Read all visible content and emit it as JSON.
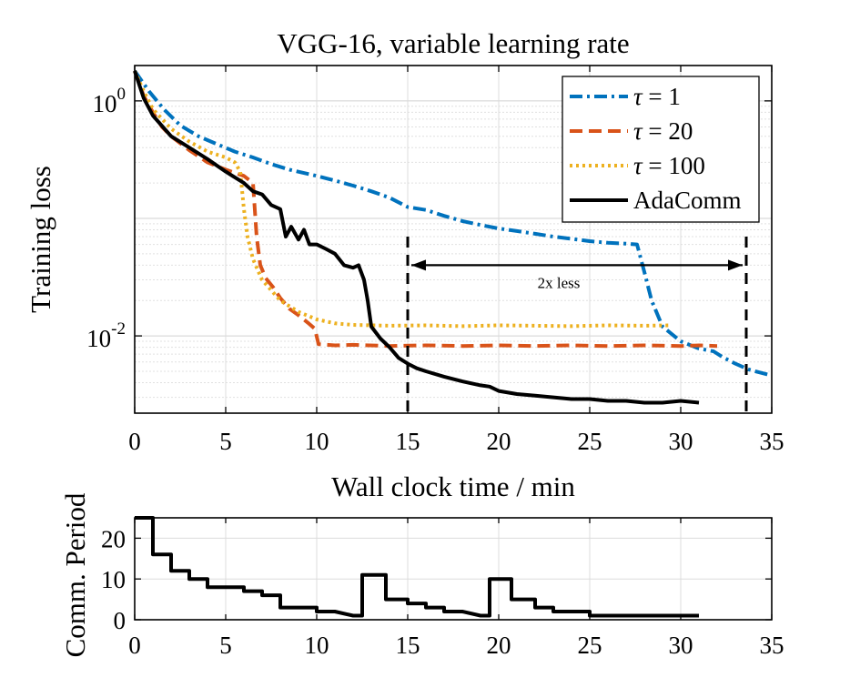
{
  "chart_data": [
    {
      "type": "line",
      "title": "VGG-16, variable learning rate",
      "xlabel": "Wall clock time / min",
      "ylabel": "Training loss",
      "yscale": "log",
      "xlim": [
        0,
        35
      ],
      "ylim": [
        0.0022,
        2.0
      ],
      "xticks": [
        0,
        5,
        10,
        15,
        20,
        25,
        30,
        35
      ],
      "xtick_labels": [
        "0",
        "5",
        "10",
        "15",
        "20",
        "25",
        "30",
        "35"
      ],
      "ytick_labels": [
        {
          "value": 1,
          "base": "10",
          "exp": "0"
        },
        {
          "value": 0.01,
          "base": "10",
          "exp": "-2"
        }
      ],
      "grid": true,
      "legend_position": "top-right",
      "series": [
        {
          "name": "τ = 1",
          "label_sym": "τ",
          "label_rest": " = 1",
          "color": "#0072BD",
          "style": "dash-dot",
          "x": [
            0,
            0.8,
            1.6,
            2.5,
            3.5,
            4.5,
            5.5,
            6.5,
            7.5,
            8.5,
            10,
            11,
            12,
            13,
            14,
            15,
            16,
            17,
            18,
            19,
            20,
            21,
            22,
            23,
            24,
            25,
            26,
            27,
            27.6,
            28,
            28.4,
            29,
            30,
            31,
            31.8,
            32.3,
            33,
            33.7,
            34.3,
            35
          ],
          "y": [
            1.8,
            1.2,
            0.85,
            0.62,
            0.5,
            0.43,
            0.37,
            0.33,
            0.29,
            0.26,
            0.23,
            0.21,
            0.19,
            0.17,
            0.15,
            0.125,
            0.118,
            0.105,
            0.095,
            0.088,
            0.082,
            0.078,
            0.074,
            0.07,
            0.067,
            0.064,
            0.062,
            0.061,
            0.06,
            0.035,
            0.02,
            0.012,
            0.009,
            0.0078,
            0.0074,
            0.0066,
            0.0058,
            0.0052,
            0.0049,
            0.0046
          ]
        },
        {
          "name": "τ = 20",
          "label_sym": "τ",
          "label_rest": " = 20",
          "color": "#D95319",
          "style": "dashed",
          "x": [
            0,
            0.5,
            1,
            1.5,
            2,
            3,
            4,
            5,
            6,
            6.5,
            6.7,
            6.9,
            7.2,
            7.6,
            8,
            8.5,
            9,
            9.5,
            9.9,
            10.1,
            11,
            12,
            14,
            16,
            18,
            20,
            22,
            24,
            26,
            28,
            30,
            31,
            32
          ],
          "y": [
            1.8,
            1.1,
            0.8,
            0.6,
            0.5,
            0.38,
            0.3,
            0.26,
            0.23,
            0.2,
            0.07,
            0.04,
            0.031,
            0.026,
            0.021,
            0.017,
            0.015,
            0.013,
            0.0115,
            0.0085,
            0.0083,
            0.0084,
            0.0082,
            0.0083,
            0.0082,
            0.0083,
            0.0082,
            0.0083,
            0.0082,
            0.0083,
            0.0082,
            0.0083,
            0.0082
          ]
        },
        {
          "name": "τ = 100",
          "label_sym": "τ",
          "label_rest": " = 100",
          "color": "#EDB120",
          "style": "dotted",
          "x": [
            0,
            0.5,
            1,
            2,
            3,
            4,
            5,
            5.5,
            5.8,
            6,
            6.2,
            6.5,
            7,
            8,
            9,
            10,
            11,
            12,
            14,
            16,
            18,
            20,
            22,
            24,
            26,
            28,
            29.5
          ],
          "y": [
            1.8,
            1.2,
            0.85,
            0.58,
            0.45,
            0.37,
            0.33,
            0.3,
            0.25,
            0.12,
            0.07,
            0.045,
            0.03,
            0.02,
            0.016,
            0.0138,
            0.0128,
            0.0124,
            0.0122,
            0.0123,
            0.0121,
            0.0123,
            0.0122,
            0.0121,
            0.0123,
            0.0122,
            0.0123
          ]
        },
        {
          "name": "AdaComm",
          "label_sym": "",
          "label_rest": "AdaComm",
          "color": "#000000",
          "style": "solid",
          "x": [
            0,
            0.5,
            1,
            2,
            3,
            4,
            5,
            6,
            6.5,
            7,
            7.5,
            8,
            8.3,
            8.6,
            9,
            9.3,
            9.6,
            10,
            10.5,
            11,
            11.5,
            12,
            12.3,
            12.6,
            12.8,
            13,
            13.5,
            14,
            14.5,
            15,
            15.5,
            16,
            17,
            18,
            19,
            19.5,
            20,
            21,
            22,
            23,
            24,
            25,
            26,
            27,
            28,
            29,
            30,
            31
          ],
          "y": [
            1.8,
            1.05,
            0.75,
            0.5,
            0.4,
            0.32,
            0.25,
            0.2,
            0.17,
            0.16,
            0.13,
            0.12,
            0.07,
            0.085,
            0.066,
            0.08,
            0.06,
            0.06,
            0.055,
            0.05,
            0.04,
            0.038,
            0.04,
            0.03,
            0.02,
            0.012,
            0.0095,
            0.008,
            0.0065,
            0.0058,
            0.0053,
            0.005,
            0.0045,
            0.0041,
            0.0038,
            0.0037,
            0.0034,
            0.0032,
            0.0031,
            0.003,
            0.0029,
            0.0029,
            0.0028,
            0.0028,
            0.0027,
            0.0027,
            0.0028,
            0.0027
          ]
        }
      ],
      "annotation": {
        "text": "2x less",
        "x_from": 15,
        "x_to": 33.6,
        "y_arrow": 0.04,
        "vlines_x": [
          15,
          33.6
        ],
        "vline_y_from": 0.0022,
        "vline_y_to": 0.07
      }
    },
    {
      "type": "line",
      "xlabel": "",
      "ylabel": "Comm. Period",
      "xlim": [
        0,
        35
      ],
      "ylim": [
        0,
        25
      ],
      "xticks": [
        0,
        5,
        10,
        15,
        20,
        25,
        30,
        35
      ],
      "xtick_labels": [
        "0",
        "5",
        "10",
        "15",
        "20",
        "25",
        "30",
        "35"
      ],
      "yticks": [
        0,
        10,
        20
      ],
      "ytick_labels": [
        "0",
        "10",
        "20"
      ],
      "grid": true,
      "series": [
        {
          "name": "AdaComm",
          "color": "#000000",
          "style": "solid",
          "x": [
            0,
            1,
            1,
            2,
            2,
            3,
            3,
            4,
            4,
            5,
            5,
            6,
            6,
            7,
            7,
            8,
            8,
            9,
            9,
            10,
            10,
            11,
            11,
            12,
            12.5,
            12.5,
            13.5,
            13.8,
            13.8,
            15,
            15,
            16,
            16,
            17,
            17,
            18,
            18,
            19,
            19.5,
            19.5,
            20.5,
            20.7,
            20.7,
            22,
            22,
            23,
            23,
            24,
            24,
            25,
            25,
            31
          ],
          "y": [
            25,
            25,
            16,
            16,
            12,
            12,
            10,
            10,
            8,
            8,
            8,
            8,
            7,
            7,
            6,
            6,
            3,
            3,
            3,
            3,
            2,
            2,
            2,
            1,
            1,
            11,
            11,
            11,
            5,
            5,
            4,
            4,
            3,
            3,
            2,
            2,
            2,
            1,
            1,
            10,
            10,
            10,
            5,
            5,
            3,
            3,
            2,
            2,
            2,
            2,
            1,
            1
          ]
        }
      ]
    }
  ]
}
